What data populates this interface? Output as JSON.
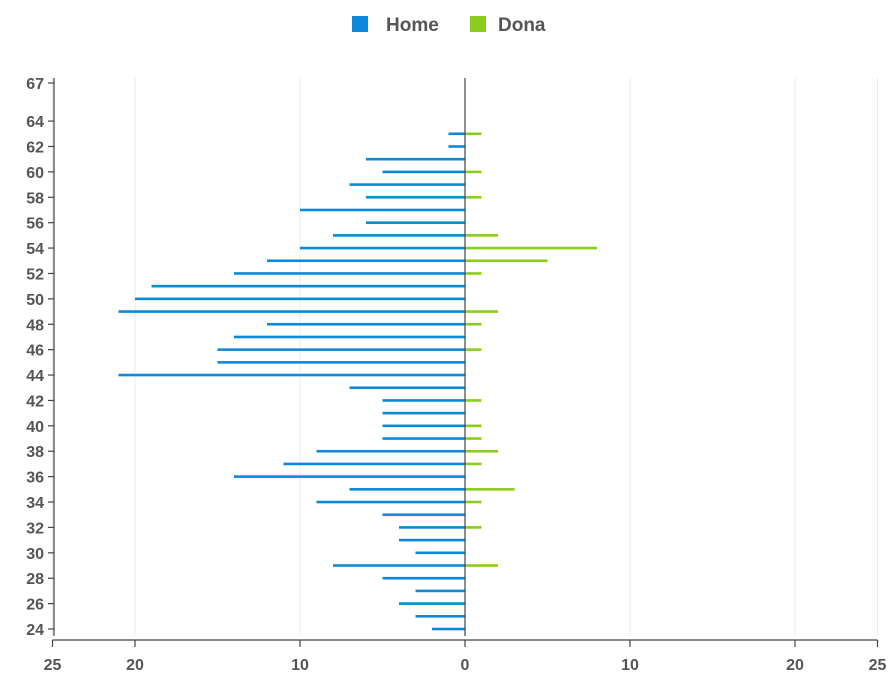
{
  "chart_data": {
    "type": "bar",
    "orientation": "horizontal-population-pyramid",
    "title": "",
    "xlabel": "",
    "ylabel": "",
    "xlim": [
      -25,
      25
    ],
    "ylim": [
      24,
      67
    ],
    "grid": true,
    "legend_placement": "top-center",
    "x_ticks": [
      "25",
      "20",
      "10",
      "0",
      "10",
      "20",
      "25"
    ],
    "x_tick_values": [
      -25,
      -20,
      -10,
      0,
      10,
      20,
      25
    ],
    "y_ticks": [
      "24",
      "26",
      "28",
      "30",
      "32",
      "34",
      "36",
      "38",
      "40",
      "42",
      "44",
      "46",
      "48",
      "50",
      "52",
      "54",
      "56",
      "58",
      "60",
      "62",
      "64",
      "67"
    ],
    "y_tick_values": [
      24,
      26,
      28,
      30,
      32,
      34,
      36,
      38,
      40,
      42,
      44,
      46,
      48,
      50,
      52,
      54,
      56,
      58,
      60,
      62,
      64,
      67
    ],
    "ages": [
      24,
      25,
      26,
      27,
      28,
      29,
      30,
      31,
      32,
      33,
      34,
      35,
      36,
      37,
      38,
      39,
      40,
      41,
      42,
      43,
      44,
      45,
      46,
      47,
      48,
      49,
      50,
      51,
      52,
      53,
      54,
      55,
      56,
      57,
      58,
      59,
      60,
      61,
      62,
      63,
      64,
      65,
      66,
      67
    ],
    "series": [
      {
        "name": "Home",
        "color": "#0a8ad8",
        "side": "left",
        "values": [
          2,
          3,
          4,
          3,
          5,
          8,
          3,
          4,
          4,
          5,
          9,
          7,
          14,
          11,
          9,
          5,
          5,
          5,
          5,
          7,
          21,
          15,
          15,
          14,
          12,
          21,
          20,
          19,
          14,
          12,
          10,
          8,
          6,
          10,
          6,
          7,
          5,
          6,
          1,
          1,
          0,
          0,
          0,
          0
        ]
      },
      {
        "name": "Dona",
        "color": "#8ccc1c",
        "side": "right",
        "values": [
          0,
          0,
          0,
          0,
          0,
          2,
          0,
          0,
          1,
          0,
          1,
          3,
          0,
          1,
          2,
          1,
          1,
          0,
          1,
          0,
          0,
          0,
          1,
          0,
          1,
          2,
          0,
          0,
          1,
          5,
          8,
          2,
          0,
          0,
          1,
          0,
          1,
          0,
          0,
          1,
          0,
          0,
          0,
          0
        ]
      }
    ]
  }
}
